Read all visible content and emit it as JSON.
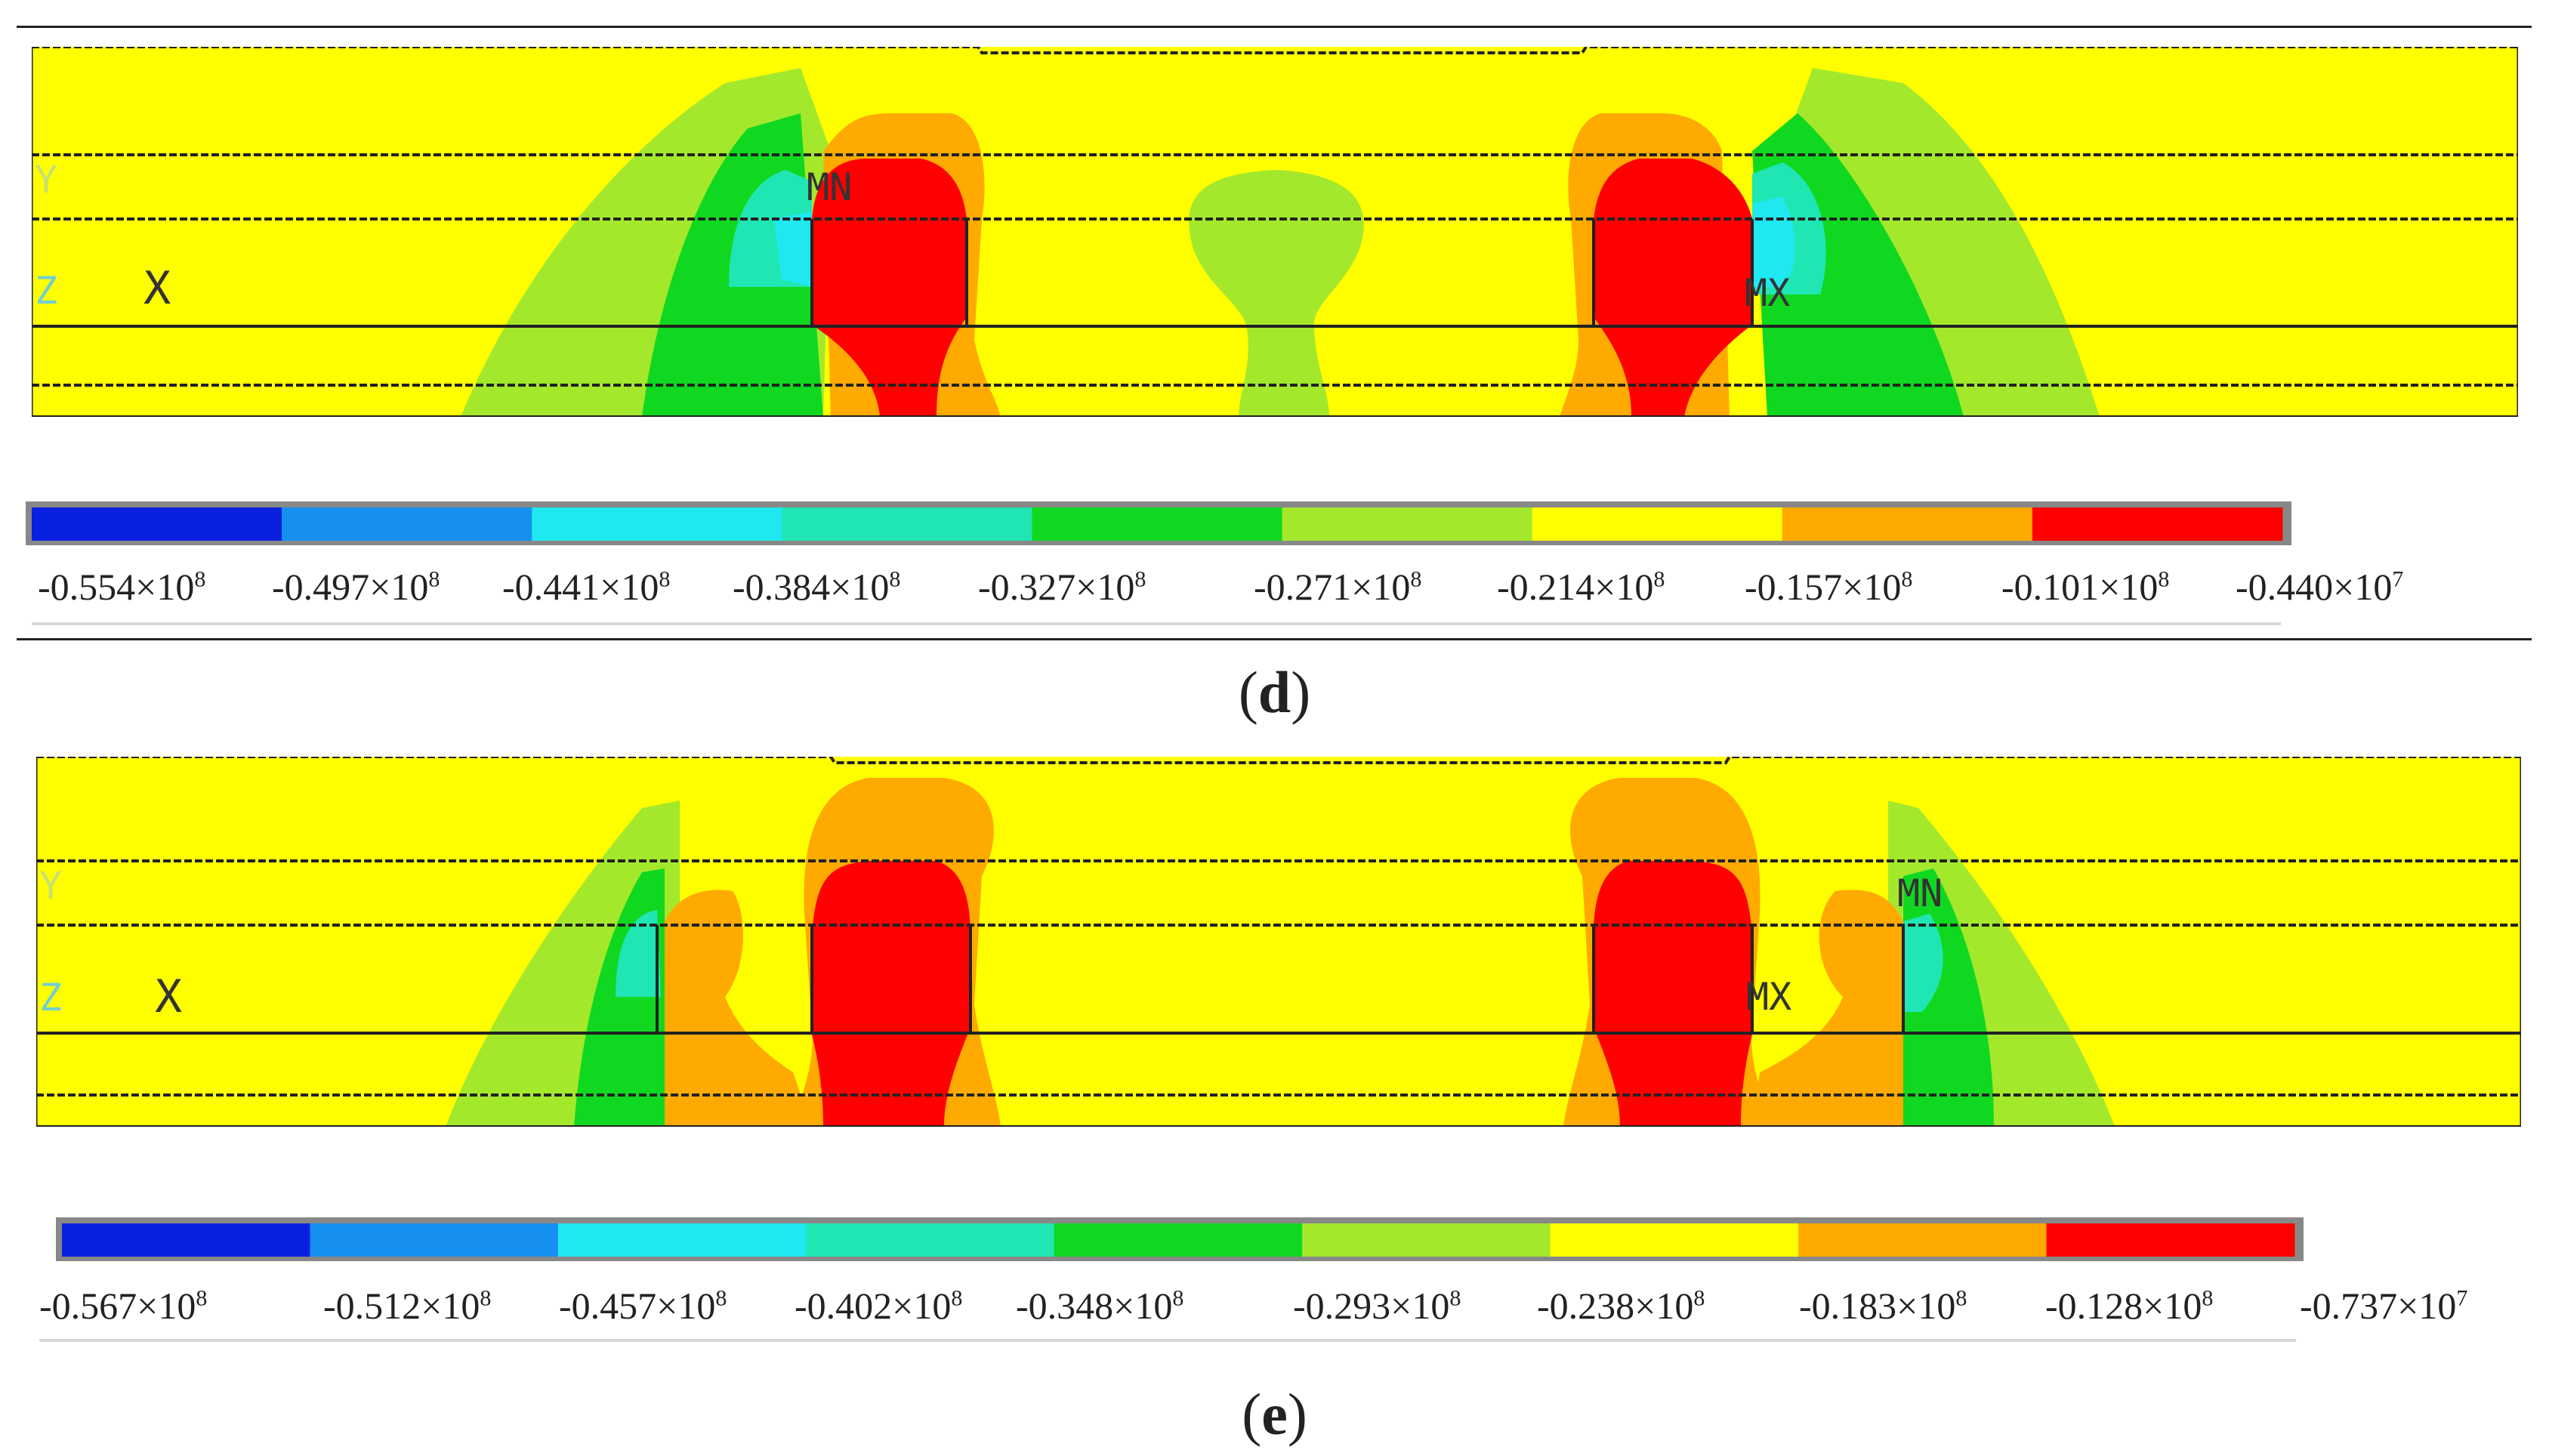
{
  "colors": {
    "contour_levels": [
      "#0a20e0",
      "#1590f0",
      "#20e8f0",
      "#20e6b4",
      "#10d820",
      "#a4e82c",
      "#ffff00",
      "#ffaa00",
      "#ff0000"
    ],
    "background": "#ffff00",
    "mesh_lines": "#222222"
  },
  "panels": [
    {
      "id": "d",
      "caption_letter": "d",
      "markers": {
        "mn": "MN",
        "mx": "MX",
        "axis_x": "X",
        "axis_y": "Y",
        "axis_z": "Z"
      },
      "legend": [
        {
          "mant": "-0.554×10",
          "exp": "8"
        },
        {
          "mant": "-0.497×10",
          "exp": "8"
        },
        {
          "mant": "-0.441×10",
          "exp": "8"
        },
        {
          "mant": "-0.384×10",
          "exp": "8"
        },
        {
          "mant": "-0.327×10",
          "exp": "8"
        },
        {
          "mant": "-0.271×10",
          "exp": "8"
        },
        {
          "mant": "-0.214×10",
          "exp": "8"
        },
        {
          "mant": "-0.157×10",
          "exp": "8"
        },
        {
          "mant": "-0.101×10",
          "exp": "8"
        },
        {
          "mant": "-0.440×10",
          "exp": "7"
        }
      ]
    },
    {
      "id": "e",
      "caption_letter": "e",
      "markers": {
        "mn": "MN",
        "mx": "MX",
        "axis_x": "X",
        "axis_y": "Y",
        "axis_z": "Z"
      },
      "legend": [
        {
          "mant": "-0.567×10",
          "exp": "8"
        },
        {
          "mant": "-0.512×10",
          "exp": "8"
        },
        {
          "mant": "-0.457×10",
          "exp": "8"
        },
        {
          "mant": "-0.402×10",
          "exp": "8"
        },
        {
          "mant": "-0.348×10",
          "exp": "8"
        },
        {
          "mant": "-0.293×10",
          "exp": "8"
        },
        {
          "mant": "-0.238×10",
          "exp": "8"
        },
        {
          "mant": "-0.183×10",
          "exp": "8"
        },
        {
          "mant": "-0.128×10",
          "exp": "8"
        },
        {
          "mant": "-0.737×10",
          "exp": "7"
        }
      ]
    }
  ]
}
